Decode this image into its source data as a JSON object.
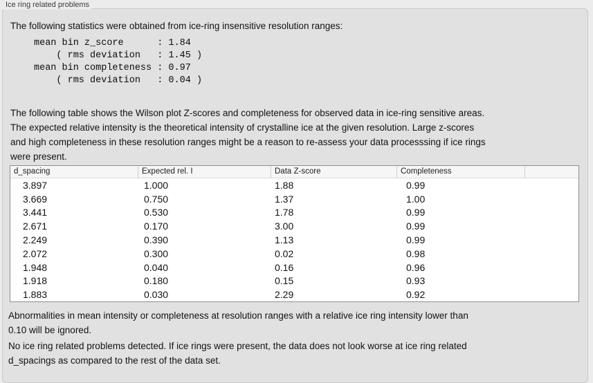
{
  "panel": {
    "title": "Ice ring related problems"
  },
  "intro": "The following statistics were obtained from ice-ring insensitive resolution ranges:",
  "stats_block": {
    "lines": [
      "mean bin z_score      : 1.84",
      "    ( rms deviation   : 1.45 )",
      "mean bin completeness : 0.97",
      "    ( rms deviation   : 0.04 )"
    ]
  },
  "description_lines": [
    "The following table shows the Wilson plot Z-scores and completeness for observed data in ice-ring sensitive areas.",
    "The expected relative intensity is the theoretical intensity of crystalline ice at the given resolution. Large z-scores",
    "and high completeness in these resolution ranges might be a reason to re-assess your data processsing if ice rings",
    "were present."
  ],
  "table": {
    "columns": [
      "d_spacing",
      "Expected rel. I",
      "Data Z-score",
      "Completeness"
    ],
    "rows": [
      [
        "3.897",
        "1.000",
        "1.88",
        "0.99"
      ],
      [
        "3.669",
        "0.750",
        "1.37",
        "1.00"
      ],
      [
        "3.441",
        "0.530",
        "1.78",
        "0.99"
      ],
      [
        "2.671",
        "0.170",
        "3.00",
        "0.99"
      ],
      [
        "2.249",
        "0.390",
        "1.13",
        "0.99"
      ],
      [
        "2.072",
        "0.300",
        "0.02",
        "0.98"
      ],
      [
        "1.948",
        "0.040",
        "0.16",
        "0.96"
      ],
      [
        "1.918",
        "0.180",
        "0.15",
        "0.93"
      ],
      [
        "1.883",
        "0.030",
        "2.29",
        "0.92"
      ]
    ]
  },
  "note_lines": [
    "Abnormalities in mean intensity or completeness at resolution ranges with a relative ice ring intensity lower than",
    "0.10 will be ignored."
  ],
  "conclusion_lines": [
    "No ice ring related problems detected. If ice rings were present, the data does not look worse at ice ring related",
    "d_spacings as compared to the rest of the data set."
  ],
  "colors": {
    "page_bg": "#ececec",
    "panel_bg": "#e1e1e1",
    "panel_border": "#c9c9c9",
    "table_border": "#8f8f8f",
    "table_header_bg": "#f6f6f6",
    "text": "#111111"
  }
}
